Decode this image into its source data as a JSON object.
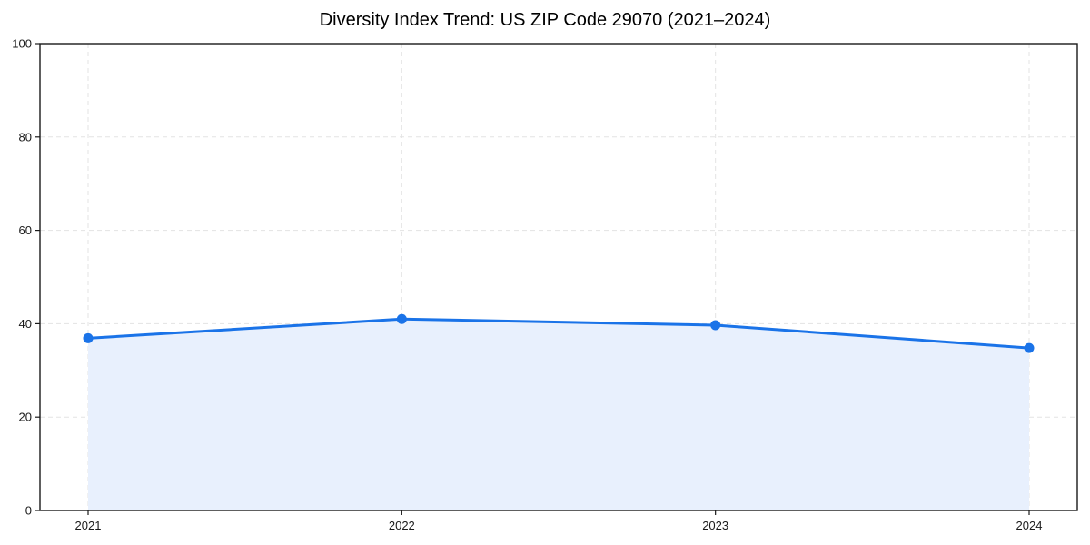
{
  "chart_data": {
    "type": "area",
    "title": "Diversity Index Trend: US ZIP Code 29070 (2021–2024)",
    "categories": [
      "2021",
      "2022",
      "2023",
      "2024"
    ],
    "series": [
      {
        "name": "Diversity Index",
        "values": [
          36.9,
          41.0,
          39.7,
          34.8
        ]
      }
    ],
    "xlabel": "",
    "ylabel": "",
    "ylim": [
      0,
      100
    ],
    "yticks": [
      0,
      20,
      40,
      60,
      80,
      100
    ],
    "grid": "dashed-both-axes",
    "legend": "none",
    "marker": "circle",
    "colors": {
      "line": "#1a73e8",
      "marker": "#1a73e8",
      "area_fill": "#e8f0fd",
      "grid": "#e3e3e3",
      "axis": "#1a1a1a",
      "background": "#ffffff",
      "title_text": "#000000",
      "tick_text": "#1a1a1a"
    }
  }
}
